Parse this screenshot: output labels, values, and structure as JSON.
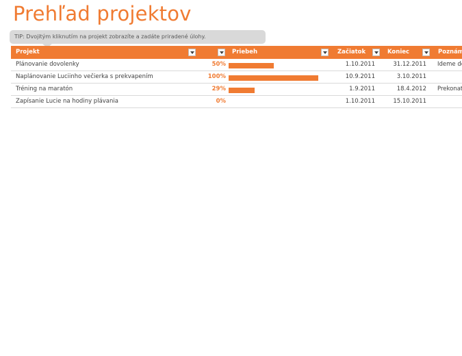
{
  "title": "Prehľad projektov",
  "tip": "TIP: Dvojitým kliknutím na projekt zobrazíte a zadáte priradené úlohy.",
  "columns": {
    "project": "Projekt",
    "progress": "Priebeh",
    "start": "Začiatok",
    "end": "Koniec",
    "notes": "Poznámky"
  },
  "rows": [
    {
      "project": "Plánovanie dovolenky",
      "progress": "50%",
      "progress_value": 0.5,
      "start": "1.10.2011",
      "end": "31.12.2011",
      "notes": "Ideme do Talianska"
    },
    {
      "project": "Naplánovanie Luciinho večierka s prekvapením",
      "progress": "100%",
      "progress_value": 1.0,
      "start": "10.9.2011",
      "end": "3.10.2011",
      "notes": ""
    },
    {
      "project": "Tréning na maratón",
      "progress": "29%",
      "progress_value": 0.29,
      "start": "1.9.2011",
      "end": "18.4.2012",
      "notes": "Prekonať čas"
    },
    {
      "project": "Zapísanie Lucie na hodiny plávania",
      "progress": "0%",
      "progress_value": 0.0,
      "start": "1.10.2011",
      "end": "15.10.2011",
      "notes": ""
    }
  ],
  "colors": {
    "accent": "#F07B32",
    "tip_background": "#D9D9D9",
    "text": "#404040"
  }
}
